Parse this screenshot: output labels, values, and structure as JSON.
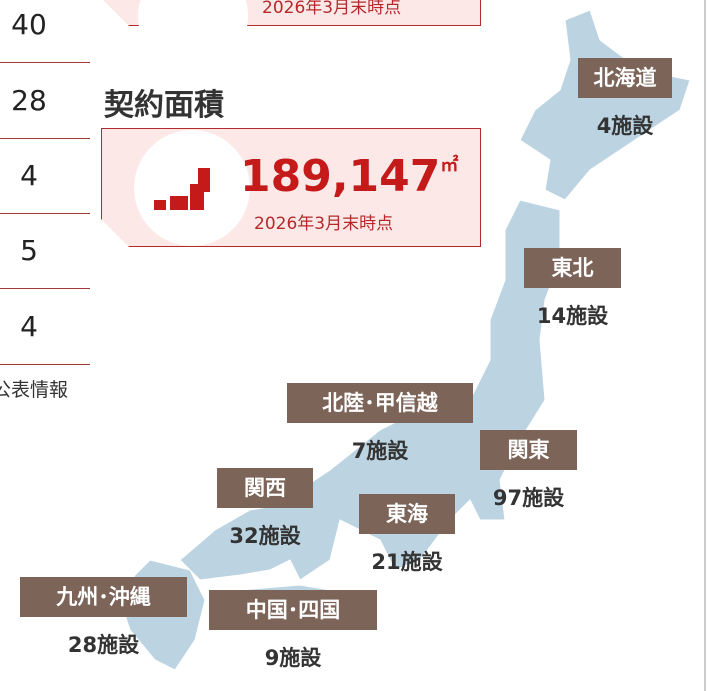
{
  "table_values": [
    "40",
    "28",
    "4",
    "5",
    "4"
  ],
  "table_note": "公表情報",
  "top_box": {
    "date": "2026年3月末時点"
  },
  "area": {
    "heading": "契約面積",
    "value": "189,147",
    "unit": "㎡",
    "date": "2026年3月末時点"
  },
  "regions": [
    {
      "name": "北海道",
      "count": "4施設"
    },
    {
      "name": "東北",
      "count": "14施設"
    },
    {
      "name": "北陸･甲信越",
      "count": "7施設"
    },
    {
      "name": "関東",
      "count": "97施設"
    },
    {
      "name": "関西",
      "count": "32施設"
    },
    {
      "name": "東海",
      "count": "21施設"
    },
    {
      "name": "九州･沖縄",
      "count": "28施設"
    },
    {
      "name": "中国･四国",
      "count": "9施設"
    }
  ]
}
